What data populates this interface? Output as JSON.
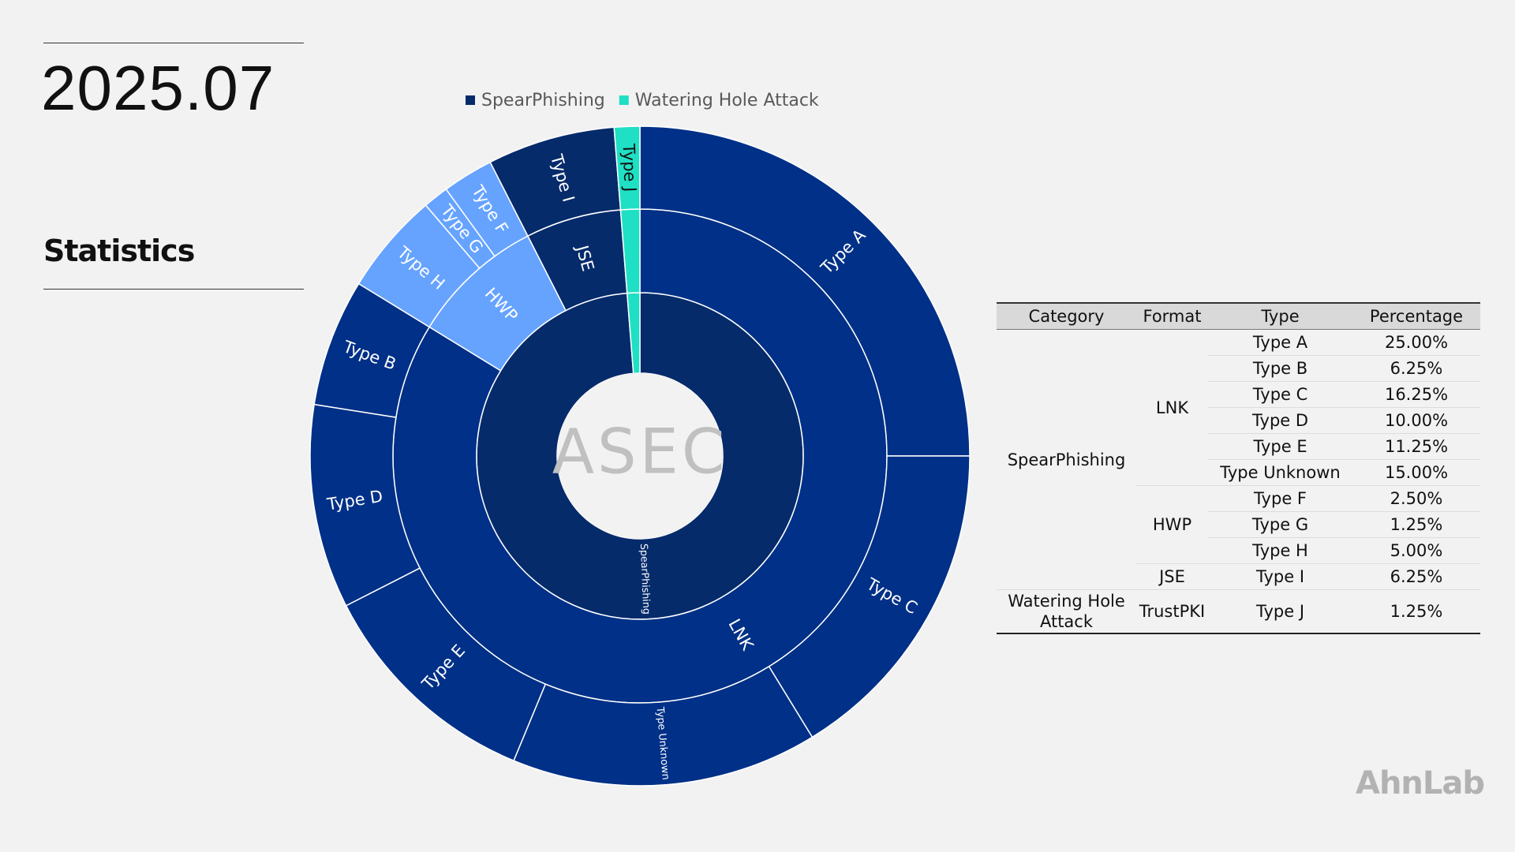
{
  "header": {
    "date": "2025.07",
    "section": "Statistics"
  },
  "logos": {
    "center": "ASEC",
    "corner": "AhnLab"
  },
  "chart_data": {
    "type": "sunburst",
    "nodes": [
      {
        "name": "SpearPhishing",
        "color": "#062b6b",
        "children": [
          {
            "name": "LNK",
            "color": "#003087",
            "children": [
              {
                "name": "Type A",
                "value": 25
              },
              {
                "name": "Type C",
                "value": 16.25
              },
              {
                "name": "Type Unknown",
                "value": 15
              },
              {
                "name": "Type E",
                "value": 11.25
              },
              {
                "name": "Type D",
                "value": 10
              },
              {
                "name": "Type B",
                "value": 6.25
              }
            ]
          },
          {
            "name": "HWP",
            "color": "#66a3ff",
            "children": [
              {
                "name": "Type H",
                "value": 5
              },
              {
                "name": "Type G",
                "value": 1.25
              },
              {
                "name": "Type F",
                "value": 2.5
              }
            ]
          },
          {
            "name": "JSE",
            "color": "#062b6b",
            "children": [
              {
                "name": "Type I",
                "value": 6.25
              }
            ]
          }
        ]
      },
      {
        "name": "Watering Hole Attack",
        "color": "#1fe0c4",
        "children": [
          {
            "name": "TrustPKI",
            "color": "#1fe0c4",
            "children": [
              {
                "name": "Type J",
                "value": 1.25
              }
            ]
          }
        ]
      }
    ]
  },
  "table": {
    "columns": [
      "Category",
      "Format",
      "Type",
      "Percentage"
    ],
    "groups": [
      {
        "category": "SpearPhishing",
        "formats": [
          {
            "format": "LNK",
            "rows": [
              {
                "type": "Type A",
                "percentage": "25.00%"
              },
              {
                "type": "Type B",
                "percentage": "6.25%"
              },
              {
                "type": "Type C",
                "percentage": "16.25%"
              },
              {
                "type": "Type D",
                "percentage": "10.00%"
              },
              {
                "type": "Type E",
                "percentage": "11.25%"
              },
              {
                "type": "Type Unknown",
                "percentage": "15.00%"
              }
            ]
          },
          {
            "format": "HWP",
            "rows": [
              {
                "type": "Type F",
                "percentage": "2.50%"
              },
              {
                "type": "Type G",
                "percentage": "1.25%"
              },
              {
                "type": "Type H",
                "percentage": "5.00%"
              }
            ]
          },
          {
            "format": "JSE",
            "rows": [
              {
                "type": "Type I",
                "percentage": "6.25%"
              }
            ]
          }
        ]
      },
      {
        "category": "Watering Hole Attack",
        "formats": [
          {
            "format": "TrustPKI",
            "rows": [
              {
                "type": "Type J",
                "percentage": "1.25%"
              }
            ]
          }
        ]
      }
    ]
  }
}
